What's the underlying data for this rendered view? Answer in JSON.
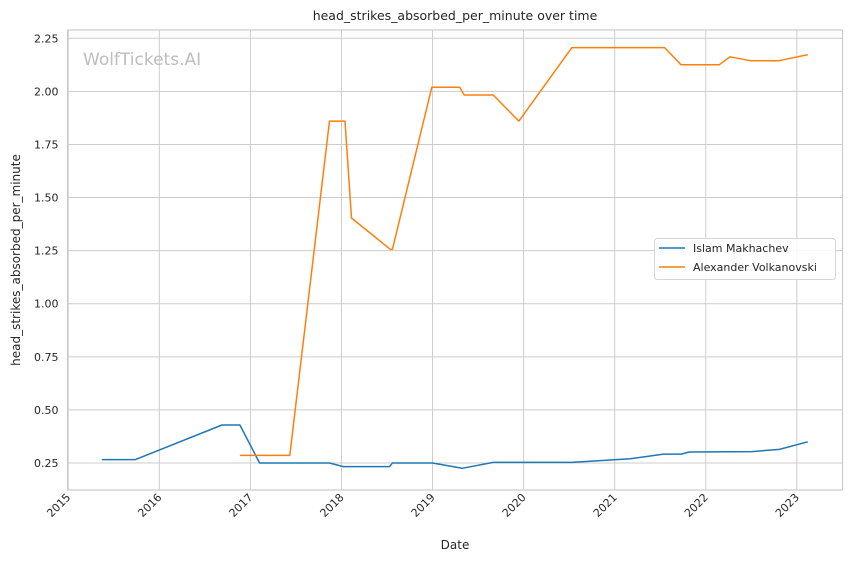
{
  "chart_data": {
    "type": "line",
    "title": "head_strikes_absorbed_per_minute over time",
    "xlabel": "Date",
    "ylabel": "head_strikes_absorbed_per_minute",
    "watermark": "WolfTickets.AI",
    "xlim": [
      "2014-12-29",
      "2023-07-03"
    ],
    "ylim": [
      0.123,
      2.289
    ],
    "x_ticks": [
      "2015",
      "2016",
      "2017",
      "2018",
      "2019",
      "2020",
      "2021",
      "2022",
      "2023"
    ],
    "y_ticks": [
      "0.25",
      "0.50",
      "0.75",
      "1.00",
      "1.25",
      "1.50",
      "1.75",
      "2.00",
      "2.25"
    ],
    "grid": true,
    "legend_position": "center-right",
    "series": [
      {
        "name": "Islam Makhachev",
        "color": "#1f77b4",
        "x": [
          "2015-05-15",
          "2015-09-27",
          "2016-09-09",
          "2016-11-20",
          "2017-02-07",
          "2017-11-14",
          "2018-01-08",
          "2018-07-13",
          "2018-07-24",
          "2019-01-01",
          "2019-04-30",
          "2019-09-01",
          "2020-07-13",
          "2021-03-05",
          "2021-07-16",
          "2021-09-24",
          "2021-10-27",
          "2022-07-05",
          "2022-10-23",
          "2023-02-14"
        ],
        "y": [
          0.266,
          0.266,
          0.429,
          0.429,
          0.25,
          0.25,
          0.233,
          0.233,
          0.25,
          0.25,
          0.225,
          0.253,
          0.253,
          0.27,
          0.292,
          0.292,
          0.302,
          0.304,
          0.314,
          0.35
        ]
      },
      {
        "name": "Alexander Volkanovski",
        "color": "#ff7f0e",
        "x": [
          "2016-11-20",
          "2017-06-08",
          "2017-11-14",
          "2018-01-15",
          "2018-02-10",
          "2018-07-16",
          "2018-07-24",
          "2018-12-29",
          "2019-04-20",
          "2019-05-08",
          "2019-09-01",
          "2019-12-13",
          "2020-07-13",
          "2021-07-20",
          "2021-09-24",
          "2022-02-24",
          "2022-04-08",
          "2022-07-02",
          "2022-10-20",
          "2023-02-14"
        ],
        "y": [
          0.286,
          0.286,
          1.86,
          1.86,
          1.404,
          1.256,
          1.256,
          2.019,
          2.019,
          1.983,
          1.983,
          1.86,
          2.206,
          2.206,
          2.125,
          2.125,
          2.163,
          2.144,
          2.144,
          2.173
        ]
      }
    ]
  }
}
